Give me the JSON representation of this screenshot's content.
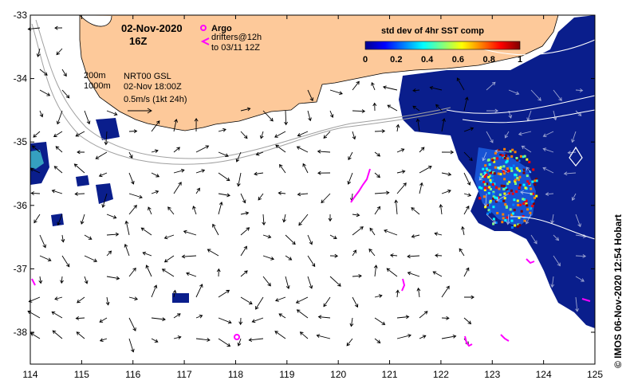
{
  "header": {
    "date": "02-Nov-2020",
    "hour": "16Z",
    "argo_label": "Argo",
    "drifters_label": "drifters@12h",
    "drifters_to": "to 03/11 12Z"
  },
  "current_info": {
    "depth_1": "200m",
    "depth_2": "1000m",
    "product": "NRT00 GSL",
    "time": "02-Nov 18:00Z",
    "scale": "0.5m/s (1kt 24h)"
  },
  "colorbar": {
    "title": "std dev of 4hr SST comp",
    "ticks": [
      "0",
      "0.2",
      "0.4",
      "0.6",
      "0.8",
      "1"
    ],
    "colors": [
      "#00008f",
      "#0000ff",
      "#0080ff",
      "#00ffff",
      "#80ff80",
      "#ffff00",
      "#ff8000",
      "#ff0000",
      "#800000"
    ]
  },
  "axes": {
    "x_ticks": [
      "114",
      "115",
      "116",
      "117",
      "118",
      "119",
      "120",
      "121",
      "122",
      "123",
      "124",
      "125"
    ],
    "y_ticks": [
      "-33",
      "-34",
      "-35",
      "-36",
      "-37",
      "-38"
    ]
  },
  "credit": "© IMOS 06-Nov-2020 12:54 Hobart",
  "colors": {
    "land": "#fdc99a",
    "ocean_data": "#0a1e8c",
    "argo": "#ff00ff",
    "drifter": "#ff00ff"
  }
}
